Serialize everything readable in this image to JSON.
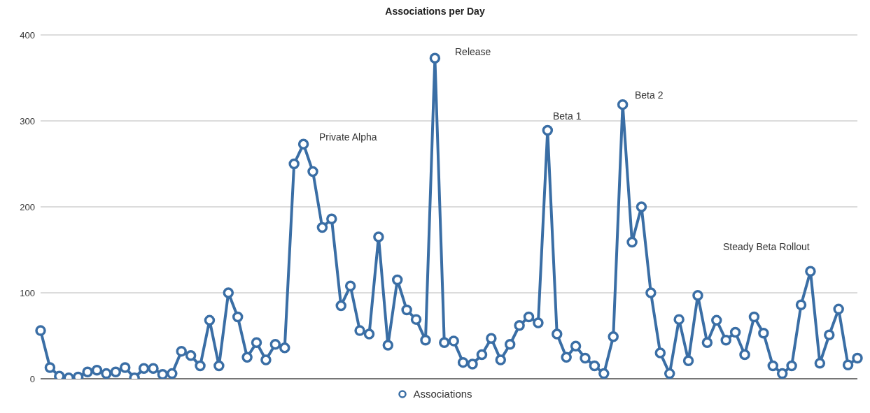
{
  "chart_data": {
    "type": "line",
    "title": "Associations per Day",
    "categories": [
      null,
      null,
      null,
      null,
      null,
      null,
      null,
      null,
      null,
      null,
      null,
      null,
      null,
      null,
      null,
      null,
      null,
      null,
      null,
      null,
      null,
      null,
      null,
      null,
      null,
      null,
      null,
      null,
      null,
      null,
      null,
      null,
      null,
      null,
      null,
      null,
      null,
      null,
      null,
      null,
      null,
      null,
      null,
      null,
      null,
      null,
      null,
      null,
      null,
      null,
      null,
      null,
      null,
      null,
      null,
      null,
      null,
      null,
      null,
      null,
      null,
      null,
      null,
      null,
      null,
      null,
      null,
      null,
      null,
      null,
      null,
      null,
      null,
      null,
      null,
      null,
      null,
      null,
      null,
      null,
      null,
      null,
      null,
      null,
      null,
      null,
      null,
      null
    ],
    "series": [
      {
        "name": "Associations",
        "color": "#3a6ea5",
        "values": [
          56,
          13,
          3,
          1,
          2,
          8,
          10,
          6,
          8,
          13,
          1,
          12,
          12,
          5,
          6,
          32,
          27,
          15,
          68,
          15,
          100,
          72,
          25,
          42,
          22,
          40,
          36,
          250,
          273,
          241,
          176,
          186,
          85,
          108,
          56,
          52,
          165,
          39,
          115,
          80,
          69,
          45,
          373,
          42,
          44,
          19,
          17,
          28,
          47,
          22,
          40,
          62,
          72,
          65,
          289,
          52,
          25,
          38,
          24,
          15,
          6,
          49,
          319,
          159,
          200,
          100,
          30,
          6,
          69,
          21,
          97,
          42,
          68,
          45,
          54,
          28,
          72,
          53,
          15,
          6,
          15,
          86,
          125,
          18,
          51,
          81,
          16,
          24
        ]
      }
    ],
    "ylim": [
      0,
      400
    ],
    "yticks": [
      0,
      100,
      200,
      300,
      400
    ],
    "grid": "y",
    "legend": "bottom",
    "marker": "circle",
    "line_style": "solid",
    "tick_labels": "y",
    "annotations": [
      "Private Alpha",
      "Release",
      "Beta 1",
      "Beta 2",
      "Steady Beta Rollout"
    ]
  }
}
